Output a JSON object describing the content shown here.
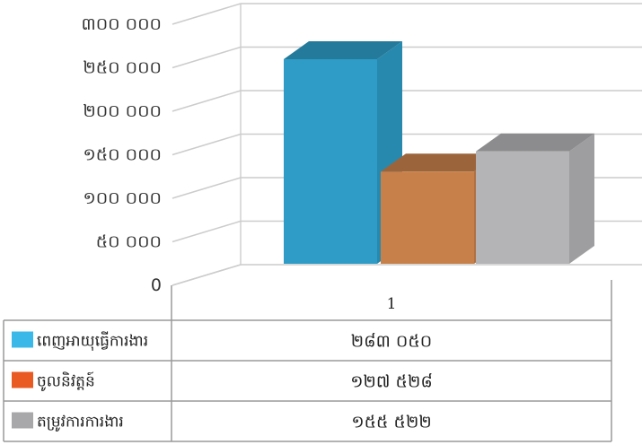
{
  "chart_data": {
    "type": "bar",
    "categories": [
      "1"
    ],
    "ylim": [
      0,
      300000
    ],
    "yticks": [
      0,
      50000,
      100000,
      150000,
      200000,
      250000,
      300000
    ],
    "ytick_labels": [
      "0",
      "៥០ ០០០",
      "១០០ ០០០",
      "១៥០ ០០០",
      "២០០ ០០០",
      "២៥០ ០០០",
      "៣០០ ០០០"
    ],
    "series": [
      {
        "name": "ពេញអាយុធ្វើការងារ",
        "values": [
          283050
        ],
        "value_label": "២៨៣ ០៥០",
        "color": "#2e9cc6"
      },
      {
        "name": "ចូលនិវត្តន៍",
        "values": [
          127528
        ],
        "value_label": "១២៧ ៥២៨",
        "color": "#c8804a"
      },
      {
        "name": "តម្រូវការការងារ",
        "values": [
          155522
        ],
        "value_label": "១៥៥ ៥២២",
        "color": "#b4b4b6"
      }
    ],
    "legend": "data-table",
    "grid": true,
    "style": "3d-clustered-column"
  }
}
